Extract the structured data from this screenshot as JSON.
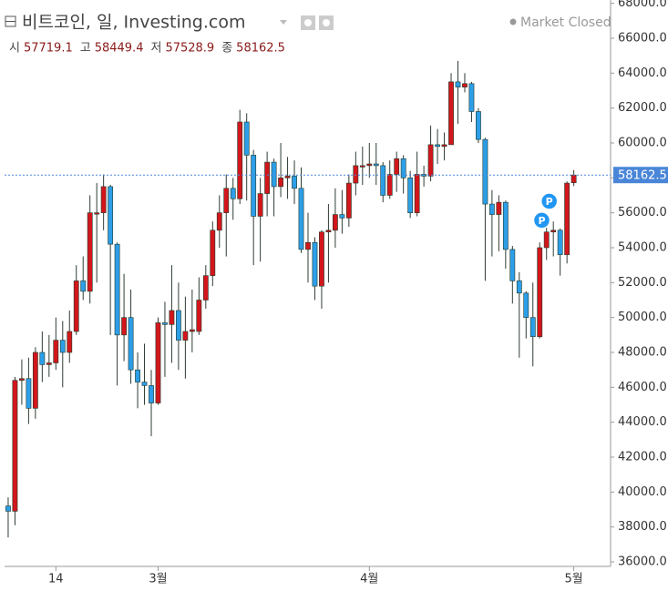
{
  "chart_data": {
    "type": "candlestick",
    "title": "비트코인, 일, Investing.com",
    "status": "Market Closed",
    "ohlc_labels": [
      "시",
      "고",
      "저",
      "종"
    ],
    "x": [
      0,
      1,
      2,
      3,
      4,
      5,
      6,
      7,
      8,
      9,
      10,
      11,
      12,
      13,
      14,
      15,
      16,
      17,
      18,
      19,
      20,
      21,
      22,
      23,
      24,
      25,
      26,
      27,
      28,
      29,
      30,
      31,
      32,
      33,
      34,
      35,
      36,
      37,
      38,
      39,
      40,
      41,
      42,
      43,
      44,
      45,
      46,
      47,
      48,
      49,
      50,
      51,
      52,
      53,
      54,
      55,
      56,
      57,
      58,
      59,
      60,
      61,
      62,
      63,
      64,
      65,
      66,
      67,
      68,
      69,
      70,
      71,
      72,
      73,
      74,
      75,
      76,
      77,
      78,
      79,
      80,
      81,
      82,
      83
    ],
    "open": [
      39200,
      38900,
      46400,
      46500,
      44800,
      48000,
      47300,
      47400,
      48700,
      48000,
      49200,
      52100,
      51500,
      56000,
      56000,
      57500,
      54200,
      49000,
      50000,
      47000,
      46300,
      46100,
      45100,
      49700,
      49600,
      50400,
      48700,
      49200,
      49200,
      51000,
      52400,
      55000,
      56000,
      57400,
      56800,
      61200,
      59300,
      55800,
      57100,
      58900,
      57500,
      58000,
      58100,
      57400,
      53900,
      54300,
      51800,
      54900,
      55000,
      55900,
      55700,
      57700,
      58700,
      58700,
      58800,
      58700,
      57000,
      58200,
      59100,
      58000,
      56000,
      58200,
      58100,
      59900,
      59800,
      59900,
      63500,
      63200,
      63400,
      61800,
      60200,
      56500,
      55900,
      56600,
      53900,
      52100,
      51400,
      50000,
      48900,
      54000,
      54900,
      55000,
      53600,
      57719.1
    ],
    "high": [
      39700,
      46600,
      47600,
      47700,
      48300,
      49200,
      49000,
      50000,
      49800,
      50400,
      53000,
      53500,
      57000,
      57700,
      58200,
      57600,
      54300,
      52500,
      51600,
      48000,
      48500,
      47000,
      50000,
      50900,
      53000,
      52000,
      51200,
      51600,
      52300,
      53000,
      55500,
      57000,
      58200,
      58000,
      61900,
      61700,
      59600,
      58000,
      59500,
      59100,
      60000,
      59200,
      59000,
      58600,
      56000,
      54600,
      55000,
      56500,
      57400,
      57300,
      58200,
      59500,
      59800,
      60000,
      60000,
      58900,
      59000,
      59500,
      59300,
      58400,
      59500,
      58700,
      61000,
      60800,
      60600,
      64000,
      64700,
      64000,
      63500,
      62000,
      60300,
      57300,
      57000,
      56700,
      54100,
      52600,
      51500,
      52000,
      54300,
      55200,
      55500,
      55100,
      57800,
      58449.4
    ],
    "low": [
      37400,
      38100,
      45000,
      43900,
      44200,
      46300,
      46600,
      47000,
      46000,
      47400,
      49000,
      51000,
      50800,
      52000,
      55000,
      49000,
      46100,
      47500,
      46200,
      44800,
      45000,
      43200,
      45000,
      46600,
      47400,
      47000,
      46500,
      48000,
      49000,
      50500,
      51800,
      54000,
      53500,
      55600,
      56500,
      56700,
      53000,
      53200,
      55800,
      55800,
      56900,
      56800,
      56500,
      53700,
      52000,
      51000,
      50500,
      52000,
      54000,
      54800,
      55200,
      57000,
      57600,
      58000,
      57600,
      56600,
      56800,
      57200,
      57100,
      55700,
      55800,
      57500,
      57800,
      58800,
      59000,
      59900,
      61100,
      62900,
      61200,
      60000,
      52100,
      53500,
      53800,
      52800,
      50800,
      47700,
      48800,
      47200,
      48800,
      53300,
      53500,
      52400,
      53100,
      57528.9
    ],
    "close": [
      38900,
      46400,
      46500,
      44800,
      48000,
      47300,
      47400,
      48700,
      48000,
      49200,
      52100,
      51500,
      56000,
      56000,
      57500,
      54200,
      49000,
      50000,
      47000,
      46300,
      46100,
      45100,
      49700,
      49600,
      50400,
      48700,
      49200,
      49300,
      51000,
      52400,
      55000,
      56000,
      57400,
      56800,
      61200,
      59300,
      55800,
      57100,
      58900,
      57500,
      58000,
      58100,
      57400,
      53900,
      54300,
      51800,
      54900,
      55000,
      55900,
      55700,
      57700,
      58700,
      58700,
      58800,
      58700,
      57000,
      58200,
      59100,
      58000,
      56000,
      58200,
      58100,
      59900,
      59800,
      59900,
      63500,
      63200,
      63400,
      61800,
      60200,
      56500,
      55900,
      56600,
      53900,
      52100,
      51400,
      50000,
      48900,
      54000,
      54900,
      55000,
      53600,
      57700,
      58162.5
    ],
    "up_color": "#d3161c",
    "down_color": "#2d9ee8",
    "wick_color": "#2f3d33",
    "last_price": 58162.5,
    "last_price_color": "#4a86d8",
    "markers": [
      {
        "x": 78.3,
        "y": 55570,
        "label": "P"
      },
      {
        "x": 79.4,
        "y": 56660,
        "label": "P"
      }
    ],
    "marker_color": "#2196f3",
    "xlim": [
      -0.53,
      88.4
    ],
    "xticks": [
      {
        "value": 7,
        "label": "14"
      },
      {
        "value": 22,
        "label": "3월"
      },
      {
        "value": 53,
        "label": "4월"
      },
      {
        "value": 83,
        "label": "5월"
      }
    ],
    "ylim": [
      35740,
      68190
    ],
    "yticks": [
      {
        "value": 36000,
        "label": "36000.0"
      },
      {
        "value": 38000,
        "label": "38000.0"
      },
      {
        "value": 40000,
        "label": "40000.0"
      },
      {
        "value": 42000,
        "label": "42000.0"
      },
      {
        "value": 44000,
        "label": "44000.0"
      },
      {
        "value": 46000,
        "label": "46000.0"
      },
      {
        "value": 48000,
        "label": "48000.0"
      },
      {
        "value": 50000,
        "label": "50000.0"
      },
      {
        "value": 52000,
        "label": "52000.0"
      },
      {
        "value": 54000,
        "label": "54000.0"
      },
      {
        "value": 56000,
        "label": "56000.0"
      },
      {
        "value": 58000,
        "label": "58000.0"
      },
      {
        "value": 60000,
        "label": "60000.0"
      },
      {
        "value": 62000,
        "label": "62000.0"
      },
      {
        "value": 64000,
        "label": "64000.0"
      },
      {
        "value": 66000,
        "label": "66000.0"
      },
      {
        "value": 68000,
        "label": "68000.0"
      }
    ],
    "grid": false
  }
}
